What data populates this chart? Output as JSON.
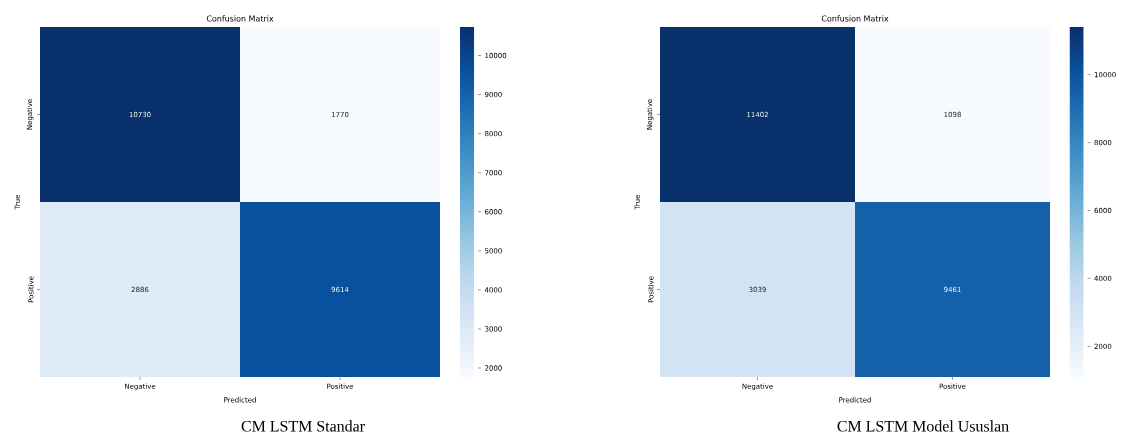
{
  "chart_data": [
    {
      "type": "heatmap",
      "title": "Confusion Matrix",
      "xlabel": "Predicted",
      "ylabel": "True",
      "categories": [
        "Negative",
        "Positive"
      ],
      "y_categories": [
        "Negative",
        "Positive"
      ],
      "cells": [
        [
          10730,
          1770
        ],
        [
          2886,
          9614
        ]
      ],
      "data_labels": true,
      "clim": [
        1770,
        10730
      ],
      "cticks": [
        2000,
        3000,
        4000,
        5000,
        6000,
        7000,
        8000,
        9000,
        10000
      ],
      "annotations": [
        "CM LSTM Standar"
      ]
    },
    {
      "type": "heatmap",
      "title": "Confusion Matrix",
      "xlabel": "Predicted",
      "ylabel": "True",
      "categories": [
        "Negative",
        "Positive"
      ],
      "y_categories": [
        "Negative",
        "Positive"
      ],
      "cells": [
        [
          11402,
          1098
        ],
        [
          3039,
          9461
        ]
      ],
      "data_labels": true,
      "clim": [
        1098,
        11402
      ],
      "cticks": [
        2000,
        4000,
        6000,
        8000,
        10000
      ],
      "annotations": [
        "CM LSTM Model Ususlan"
      ]
    }
  ]
}
